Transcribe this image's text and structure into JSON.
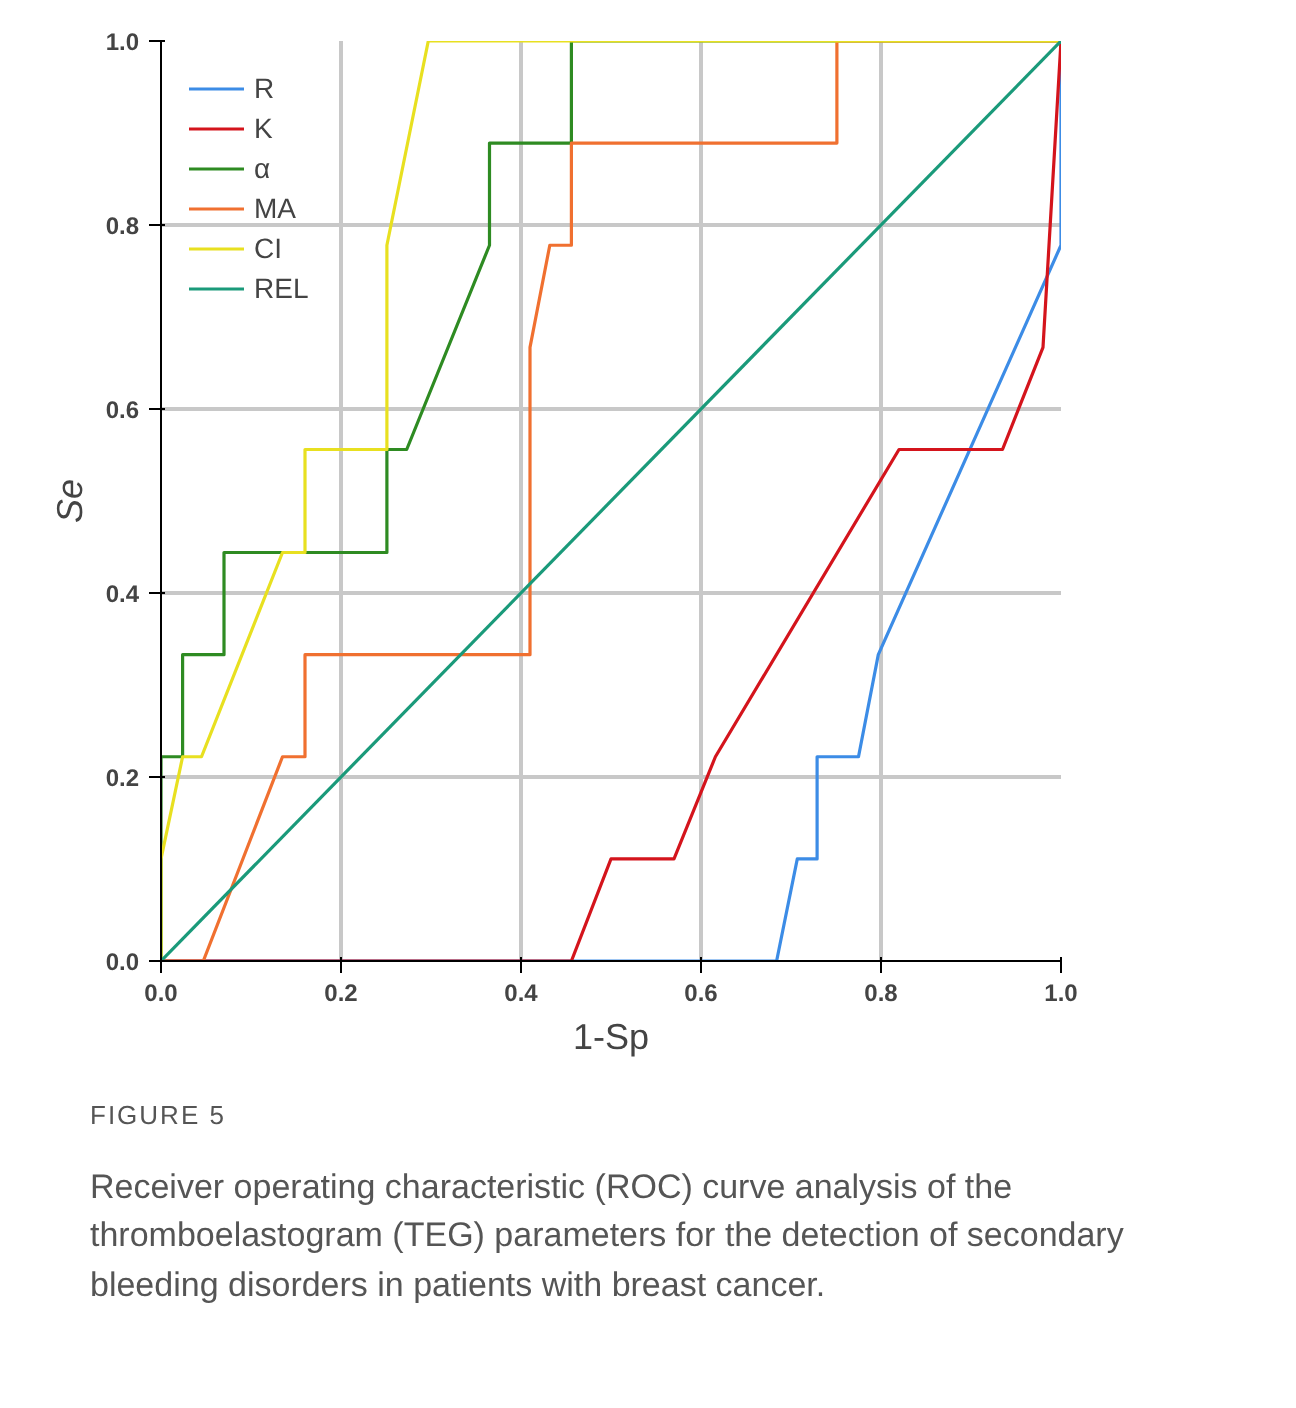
{
  "chart_data": {
    "type": "line",
    "xlabel": "1-Sp",
    "ylabel": "Se",
    "x": [
      0.0,
      1.0
    ],
    "xlim": [
      0.0,
      1.0
    ],
    "ylim": [
      0.0,
      1.0
    ],
    "xticks": [
      {
        "value": 0.0,
        "label": "0.0"
      },
      0.2,
      0.4,
      0.6,
      0.8,
      {
        "value": 1.0,
        "label": "1.0"
      }
    ],
    "yticks": [
      {
        "value": 0.0,
        "label": "0.0"
      },
      0.2,
      0.4,
      0.6,
      0.8,
      {
        "value": 1.0,
        "label": "1.0"
      }
    ],
    "grid": true,
    "legend": "top left",
    "line_style": "solid",
    "series": [
      {
        "name": "R",
        "color": "#3c8ce6",
        "x": [
          0,
          0.684,
          0.707,
          0.729,
          0.729,
          0.775,
          0.797,
          1.0,
          1.0
        ],
        "values": [
          0,
          0,
          0.111,
          0.111,
          0.222,
          0.222,
          0.333,
          0.778,
          1.0
        ]
      },
      {
        "name": "K",
        "color": "#d4141c",
        "x": [
          0,
          0.456,
          0.5,
          0.57,
          0.616,
          0.82,
          0.935,
          0.98,
          1.0
        ],
        "values": [
          0,
          0,
          0.111,
          0.111,
          0.222,
          0.556,
          0.556,
          0.667,
          1.0
        ]
      },
      {
        "name": "α",
        "color": "#2e8b22",
        "x": [
          0,
          0,
          0.024,
          0.024,
          0.07,
          0.07,
          0.251,
          0.251,
          0.273,
          0.365,
          0.365,
          0.456,
          0.456,
          1.0
        ],
        "values": [
          0,
          0.222,
          0.222,
          0.333,
          0.333,
          0.444,
          0.444,
          0.556,
          0.556,
          0.778,
          0.889,
          0.889,
          1.0,
          1.0
        ]
      },
      {
        "name": "MA",
        "color": "#f07030",
        "x": [
          0,
          0.047,
          0.135,
          0.16,
          0.16,
          0.41,
          0.41,
          0.432,
          0.456,
          0.456,
          0.751,
          0.751,
          1.0
        ],
        "values": [
          0,
          0,
          0.222,
          0.222,
          0.333,
          0.333,
          0.667,
          0.778,
          0.778,
          0.889,
          0.889,
          1.0,
          1.0
        ]
      },
      {
        "name": "CI",
        "color": "#e8e020",
        "x": [
          0,
          0,
          0.024,
          0.045,
          0.135,
          0.16,
          0.16,
          0.251,
          0.251,
          0.297,
          1.0
        ],
        "values": [
          0,
          0.111,
          0.222,
          0.222,
          0.444,
          0.444,
          0.556,
          0.556,
          0.778,
          1.0,
          1.0
        ]
      },
      {
        "name": "REL",
        "color": "#1a9a7a",
        "values": [
          0.0,
          1.0
        ]
      }
    ],
    "annotations": [
      "FIGURE 5",
      "Receiver operating characteristic (ROC) curve analysis of the thromboelastogram (TEG) parameters for the detection of secondary bleeding disorders in patients with breast cancer."
    ]
  }
}
